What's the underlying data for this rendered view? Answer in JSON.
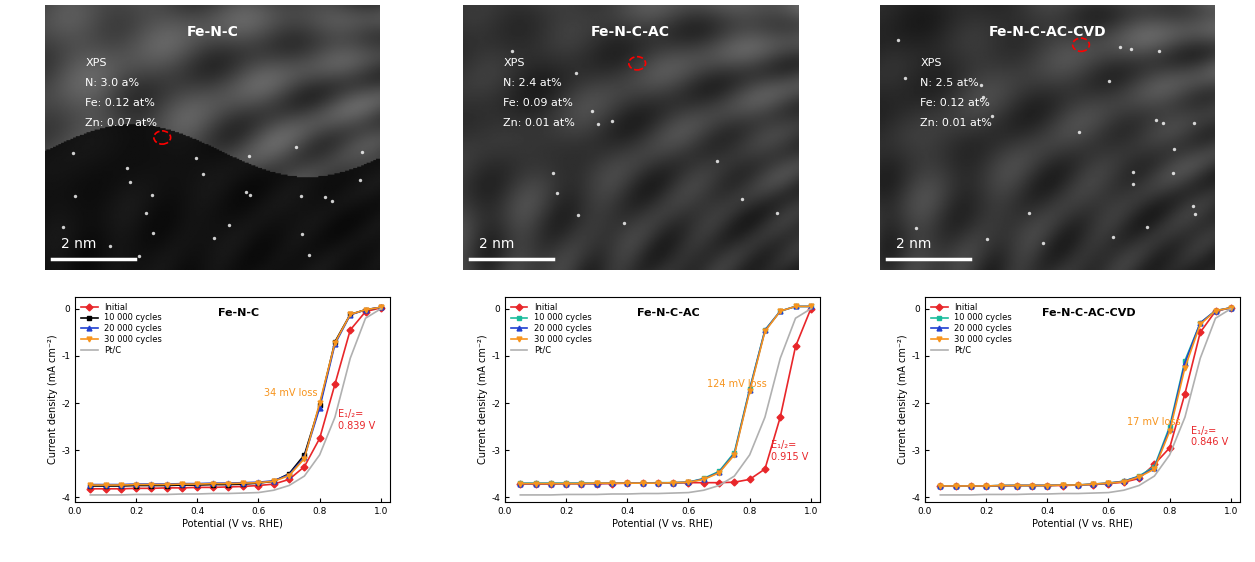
{
  "images": [
    {
      "title": "Fe-N-C",
      "annotation": [
        "XPS",
        "N: 3.0 a%",
        "Fe: 0.12 at%",
        "Zn: 0.07 at%"
      ],
      "scale_bar": "2 nm"
    },
    {
      "title": "Fe-N-C-AC",
      "annotation": [
        "XPS",
        "N: 2.4 at%",
        "Fe: 0.09 at%",
        "Zn: 0.01 at%"
      ],
      "scale_bar": "2 nm"
    },
    {
      "title": "Fe-N-C-AC-CVD",
      "annotation": [
        "XPS",
        "N: 2.5 at%",
        "Fe: 0.12 at%",
        "Zn: 0.01 at%"
      ],
      "scale_bar": "2 nm"
    }
  ],
  "chart_data": [
    {
      "type": "line",
      "title": "Fe-N-C",
      "xlabel": "Potential (V vs. RHE)",
      "ylabel": "Current density (mA cm⁻²)",
      "x": [
        0.05,
        0.1,
        0.15,
        0.2,
        0.25,
        0.3,
        0.35,
        0.4,
        0.45,
        0.5,
        0.55,
        0.6,
        0.65,
        0.7,
        0.75,
        0.8,
        0.85,
        0.9,
        0.95,
        1.0
      ],
      "series": [
        {
          "name": "Initial",
          "color": "#e8262a",
          "marker": "diamond",
          "line_style": "solid",
          "values": [
            -3.82,
            -3.82,
            -3.82,
            -3.81,
            -3.81,
            -3.8,
            -3.8,
            -3.79,
            -3.79,
            -3.78,
            -3.77,
            -3.75,
            -3.72,
            -3.62,
            -3.35,
            -2.75,
            -1.6,
            -0.45,
            -0.06,
            0.02
          ]
        },
        {
          "name": "10 000 cycles",
          "color": "#000000",
          "marker": "square",
          "line_style": "solid",
          "values": [
            -3.76,
            -3.76,
            -3.76,
            -3.75,
            -3.75,
            -3.75,
            -3.74,
            -3.74,
            -3.73,
            -3.73,
            -3.72,
            -3.7,
            -3.66,
            -3.5,
            -3.1,
            -2.05,
            -0.7,
            -0.12,
            -0.02,
            0.03
          ]
        },
        {
          "name": "20 000 cycles",
          "color": "#1f3fd1",
          "marker": "triangle_up",
          "line_style": "solid",
          "values": [
            -3.73,
            -3.73,
            -3.73,
            -3.72,
            -3.72,
            -3.72,
            -3.71,
            -3.71,
            -3.7,
            -3.7,
            -3.69,
            -3.68,
            -3.65,
            -3.52,
            -3.15,
            -2.1,
            -0.75,
            -0.13,
            -0.02,
            0.03
          ]
        },
        {
          "name": "30 000 cycles",
          "color": "#f7941d",
          "marker": "triangle_down",
          "line_style": "solid",
          "values": [
            -3.74,
            -3.74,
            -3.74,
            -3.73,
            -3.73,
            -3.73,
            -3.72,
            -3.72,
            -3.71,
            -3.71,
            -3.7,
            -3.69,
            -3.66,
            -3.54,
            -3.18,
            -2.0,
            -0.72,
            -0.12,
            -0.02,
            0.03
          ]
        },
        {
          "name": "Pt/C",
          "color": "#b0b0b0",
          "marker": "none",
          "line_style": "solid",
          "values": [
            -3.95,
            -3.95,
            -3.95,
            -3.94,
            -3.94,
            -3.94,
            -3.93,
            -3.93,
            -3.92,
            -3.92,
            -3.91,
            -3.9,
            -3.85,
            -3.75,
            -3.55,
            -3.1,
            -2.3,
            -1.05,
            -0.2,
            0.0
          ]
        }
      ],
      "xlim": [
        0.0,
        1.03
      ],
      "ylim": [
        -4.1,
        0.25
      ],
      "xticks": [
        {
          "value": 0.0,
          "label": "0.0"
        },
        0.2,
        0.4,
        0.6,
        0.8,
        {
          "value": 1.0,
          "label": "1.0"
        }
      ],
      "yticks": [
        -4,
        -3,
        -2,
        -1,
        0
      ],
      "legend": "upper left",
      "annotations": [
        {
          "text": "34 mV loss",
          "color": "#f7941d"
        },
        {
          "text": "E₁/₂=\n0.839 V",
          "color": "#e8262a"
        }
      ]
    },
    {
      "type": "line",
      "title": "Fe-N-C-AC",
      "xlabel": "Potential (V vs. RHE)",
      "ylabel": "Current density (mA cm⁻²)",
      "x": [
        0.05,
        0.1,
        0.15,
        0.2,
        0.25,
        0.3,
        0.35,
        0.4,
        0.45,
        0.5,
        0.55,
        0.6,
        0.65,
        0.7,
        0.75,
        0.8,
        0.85,
        0.9,
        0.95,
        1.0
      ],
      "series": [
        {
          "name": "Initial",
          "color": "#e8262a",
          "marker": "diamond",
          "line_style": "solid",
          "values": [
            -3.72,
            -3.72,
            -3.72,
            -3.71,
            -3.71,
            -3.71,
            -3.71,
            -3.7,
            -3.7,
            -3.7,
            -3.7,
            -3.69,
            -3.69,
            -3.69,
            -3.68,
            -3.62,
            -3.4,
            -2.3,
            -0.8,
            0.0
          ]
        },
        {
          "name": "10 000 cycles",
          "color": "#1abc9c",
          "marker": "square",
          "line_style": "solid",
          "values": [
            -3.7,
            -3.7,
            -3.7,
            -3.7,
            -3.7,
            -3.7,
            -3.7,
            -3.7,
            -3.7,
            -3.69,
            -3.69,
            -3.68,
            -3.6,
            -3.45,
            -3.05,
            -1.7,
            -0.45,
            -0.05,
            0.05,
            0.05
          ]
        },
        {
          "name": "20 000 cycles",
          "color": "#1f3fd1",
          "marker": "triangle_up",
          "line_style": "solid",
          "values": [
            -3.71,
            -3.71,
            -3.71,
            -3.71,
            -3.71,
            -3.71,
            -3.7,
            -3.7,
            -3.7,
            -3.7,
            -3.69,
            -3.68,
            -3.61,
            -3.47,
            -3.08,
            -1.72,
            -0.46,
            -0.05,
            0.05,
            0.05
          ]
        },
        {
          "name": "30 000 cycles",
          "color": "#f7941d",
          "marker": "triangle_down",
          "line_style": "solid",
          "values": [
            -3.71,
            -3.71,
            -3.71,
            -3.71,
            -3.71,
            -3.7,
            -3.7,
            -3.7,
            -3.7,
            -3.7,
            -3.69,
            -3.68,
            -3.62,
            -3.48,
            -3.1,
            -1.75,
            -0.48,
            -0.05,
            0.05,
            0.05
          ]
        },
        {
          "name": "Pt/C",
          "color": "#b0b0b0",
          "marker": "none",
          "line_style": "solid",
          "values": [
            -3.95,
            -3.95,
            -3.95,
            -3.94,
            -3.94,
            -3.94,
            -3.93,
            -3.93,
            -3.92,
            -3.92,
            -3.91,
            -3.9,
            -3.85,
            -3.75,
            -3.55,
            -3.1,
            -2.3,
            -1.05,
            -0.2,
            0.0
          ]
        }
      ],
      "xlim": [
        0.0,
        1.03
      ],
      "ylim": [
        -4.1,
        0.25
      ],
      "xticks": [
        {
          "value": 0.0,
          "label": "0.0"
        },
        0.2,
        0.4,
        0.6,
        0.8,
        {
          "value": 1.0,
          "label": "1.0"
        }
      ],
      "yticks": [
        -4,
        -3,
        -2,
        -1,
        0
      ],
      "legend": "upper left",
      "annotations": [
        {
          "text": "124 mV loss",
          "color": "#f7941d"
        },
        {
          "text": "E₁/₂=\n0.915 V",
          "color": "#e8262a"
        }
      ]
    },
    {
      "type": "line",
      "title": "Fe-N-C-AC-CVD",
      "xlabel": "Potential (V vs. RHE)",
      "ylabel": "Current density (mA cm⁻²)",
      "x": [
        0.05,
        0.1,
        0.15,
        0.2,
        0.25,
        0.3,
        0.35,
        0.4,
        0.45,
        0.5,
        0.55,
        0.6,
        0.65,
        0.7,
        0.75,
        0.8,
        0.85,
        0.9,
        0.95,
        1.0
      ],
      "series": [
        {
          "name": "Initial",
          "color": "#e8262a",
          "marker": "diamond",
          "line_style": "solid",
          "values": [
            -3.76,
            -3.76,
            -3.76,
            -3.76,
            -3.76,
            -3.75,
            -3.75,
            -3.75,
            -3.75,
            -3.74,
            -3.73,
            -3.71,
            -3.68,
            -3.6,
            -3.3,
            -2.95,
            -1.8,
            -0.5,
            -0.05,
            0.02
          ]
        },
        {
          "name": "10 000 cycles",
          "color": "#1abc9c",
          "marker": "square",
          "line_style": "solid",
          "values": [
            -3.76,
            -3.76,
            -3.76,
            -3.76,
            -3.75,
            -3.75,
            -3.75,
            -3.75,
            -3.74,
            -3.74,
            -3.72,
            -3.7,
            -3.66,
            -3.55,
            -3.35,
            -2.5,
            -1.1,
            -0.3,
            -0.04,
            0.02
          ]
        },
        {
          "name": "20 000 cycles",
          "color": "#1f3fd1",
          "marker": "triangle_up",
          "line_style": "solid",
          "values": [
            -3.76,
            -3.76,
            -3.76,
            -3.76,
            -3.75,
            -3.75,
            -3.75,
            -3.75,
            -3.74,
            -3.74,
            -3.72,
            -3.7,
            -3.66,
            -3.56,
            -3.38,
            -2.55,
            -1.15,
            -0.3,
            -0.04,
            0.02
          ]
        },
        {
          "name": "30 000 cycles",
          "color": "#f7941d",
          "marker": "triangle_down",
          "line_style": "solid",
          "values": [
            -3.76,
            -3.76,
            -3.76,
            -3.76,
            -3.75,
            -3.75,
            -3.75,
            -3.75,
            -3.74,
            -3.74,
            -3.72,
            -3.7,
            -3.67,
            -3.57,
            -3.4,
            -2.6,
            -1.25,
            -0.33,
            -0.04,
            0.02
          ]
        },
        {
          "name": "Pt/C",
          "color": "#b0b0b0",
          "marker": "none",
          "line_style": "solid",
          "values": [
            -3.95,
            -3.95,
            -3.95,
            -3.94,
            -3.94,
            -3.94,
            -3.93,
            -3.93,
            -3.92,
            -3.92,
            -3.91,
            -3.9,
            -3.85,
            -3.75,
            -3.55,
            -3.1,
            -2.3,
            -1.05,
            -0.2,
            0.0
          ]
        }
      ],
      "xlim": [
        0.0,
        1.03
      ],
      "ylim": [
        -4.1,
        0.25
      ],
      "xticks": [
        {
          "value": 0.0,
          "label": "0.0"
        },
        0.2,
        0.4,
        0.6,
        0.8,
        {
          "value": 1.0,
          "label": "1.0"
        }
      ],
      "yticks": [
        -4,
        -3,
        -2,
        -1,
        0
      ],
      "legend": "upper left",
      "annotations": [
        {
          "text": "17 mV loss",
          "color": "#f7941d"
        },
        {
          "text": "E₁/₂=\n0.846 V",
          "color": "#e8262a"
        }
      ]
    }
  ]
}
